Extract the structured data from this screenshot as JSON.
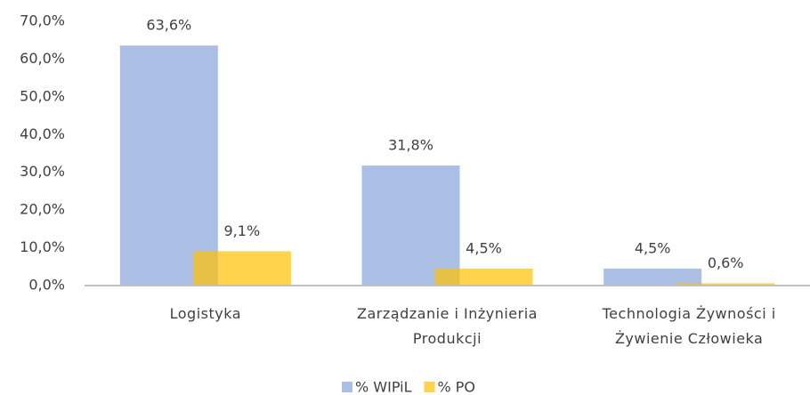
{
  "chart_data": {
    "type": "bar",
    "categories": [
      "Logistyka",
      "Zarządzanie i Inżynieria Produkcji",
      "Technologia Żywności i Żywienie Człowieka"
    ],
    "series": [
      {
        "name": "% WIPiL",
        "color": "#4472c4",
        "values": [
          63.6,
          31.8,
          4.5
        ],
        "value_labels": [
          "63,6%",
          "31,8%",
          "4,5%"
        ]
      },
      {
        "name": "% PO",
        "color": "#ffc000",
        "values": [
          9.1,
          4.5,
          0.6
        ],
        "value_labels": [
          "9,1%",
          "4,5%",
          "0,6%"
        ]
      }
    ],
    "ylim": [
      0,
      70
    ],
    "yticks": [
      {
        "value": 0,
        "label": "0,0%"
      },
      {
        "value": 10,
        "label": "10,0%"
      },
      {
        "value": 20,
        "label": "20,0%"
      },
      {
        "value": 30,
        "label": "30,0%"
      },
      {
        "value": 40,
        "label": "40,0%"
      },
      {
        "value": 50,
        "label": "50,0%"
      },
      {
        "value": 60,
        "label": "60,0%"
      },
      {
        "value": 70,
        "label": "70,0%"
      }
    ],
    "legend": "bottom"
  }
}
